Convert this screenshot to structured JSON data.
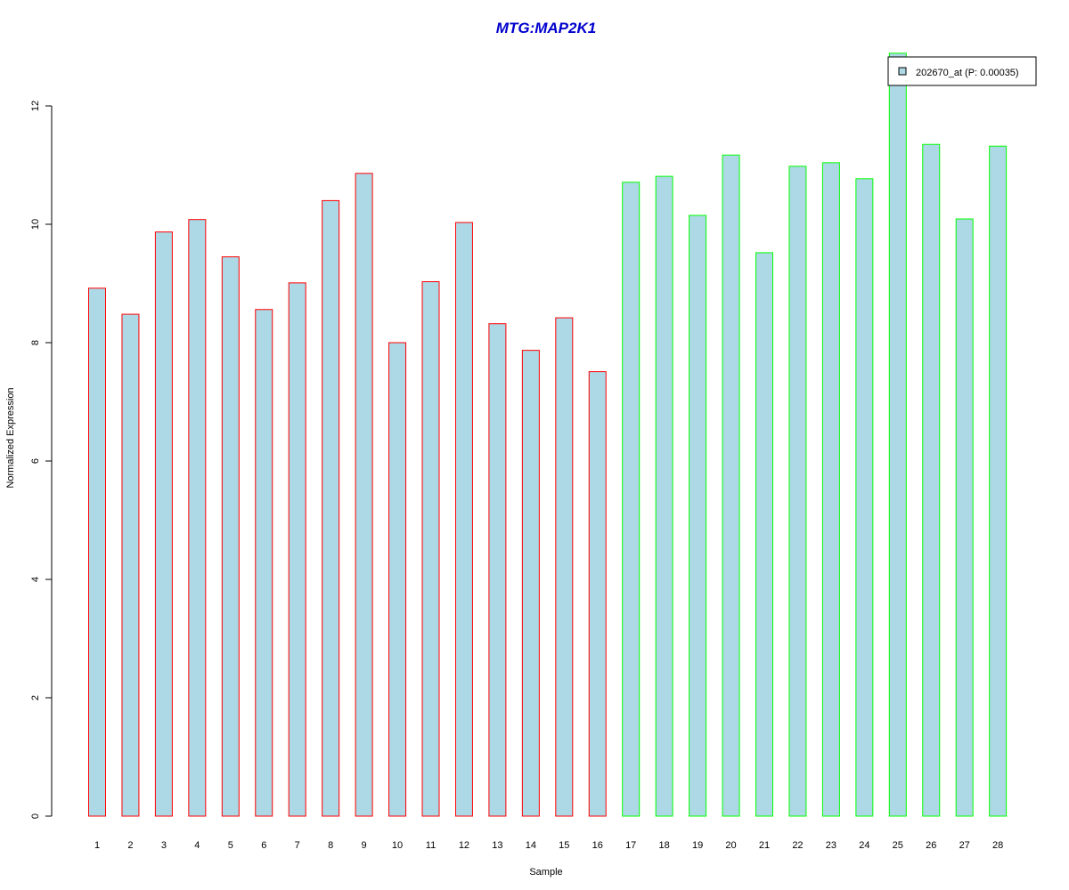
{
  "chart_data": {
    "type": "bar",
    "title": "MTG:MAP2K1",
    "xlabel": "Sample",
    "ylabel": "Normalized Expression",
    "ylim": [
      0,
      12.9
    ],
    "yticks": [
      0,
      2,
      4,
      6,
      8,
      10,
      12
    ],
    "grid": false,
    "legend_position": "top-right",
    "categories": [
      "1",
      "2",
      "3",
      "4",
      "5",
      "6",
      "7",
      "8",
      "9",
      "10",
      "11",
      "12",
      "13",
      "14",
      "15",
      "16",
      "17",
      "18",
      "19",
      "20",
      "21",
      "22",
      "23",
      "24",
      "25",
      "26",
      "27",
      "28"
    ],
    "series": [
      {
        "name": "202670_at (P: 0.00035)",
        "values": [
          8.92,
          8.48,
          9.87,
          10.08,
          9.45,
          8.56,
          9.01,
          10.4,
          10.86,
          8.0,
          9.03,
          10.03,
          8.32,
          7.87,
          8.42,
          7.51,
          10.71,
          10.81,
          10.15,
          11.17,
          9.52,
          10.98,
          11.04,
          10.77,
          12.89,
          11.35,
          10.09,
          11.32
        ],
        "groups": [
          "red",
          "red",
          "red",
          "red",
          "red",
          "red",
          "red",
          "red",
          "red",
          "red",
          "red",
          "red",
          "red",
          "red",
          "red",
          "red",
          "green",
          "green",
          "green",
          "green",
          "green",
          "green",
          "green",
          "green",
          "green",
          "green",
          "green",
          "green"
        ]
      }
    ],
    "colors": {
      "bar_fill": "#add8e6",
      "title": "#0000cd",
      "border_red": "#ff0000",
      "border_green": "#00ff00",
      "axis": "#000000"
    }
  }
}
